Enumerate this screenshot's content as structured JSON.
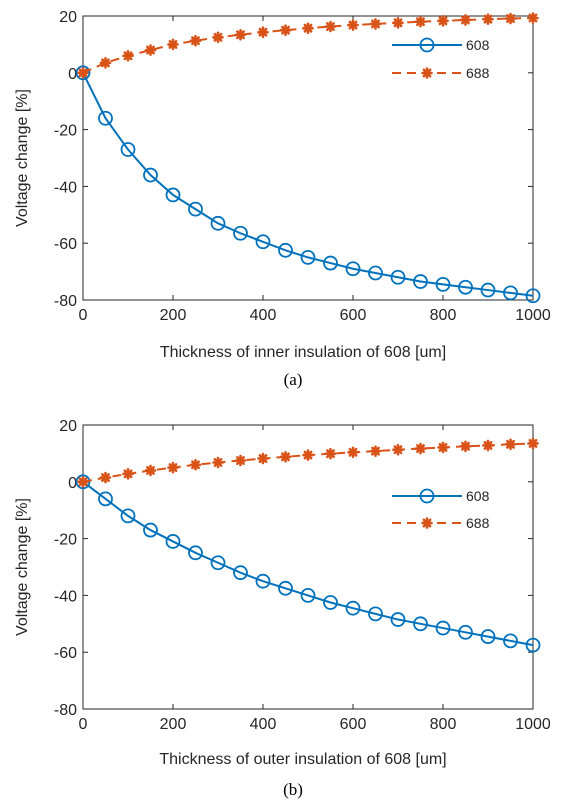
{
  "chart_data": [
    {
      "type": "line",
      "xlabel": "Thickness of inner insulation of 608 [um]",
      "ylabel": "Voltage change [%]",
      "caption": "(a)",
      "xlim": [
        0,
        1000
      ],
      "ylim": [
        -80,
        20
      ],
      "xticks": [
        "0",
        "200",
        "400",
        "600",
        "800",
        "1000"
      ],
      "yticks": [
        "20",
        "0",
        "-20",
        "-40",
        "-60",
        "-80"
      ],
      "legend_position": "top-right",
      "grid": false,
      "x": [
        0,
        50,
        100,
        150,
        200,
        250,
        300,
        350,
        400,
        450,
        500,
        550,
        600,
        650,
        700,
        750,
        800,
        850,
        900,
        950,
        1000
      ],
      "series": [
        {
          "name": "608",
          "marker": "circle",
          "line": "solid",
          "color": "#0072BD",
          "values": [
            0,
            -16,
            -27,
            -36,
            -43,
            -48,
            -53,
            -56.5,
            -59.5,
            -62.5,
            -65,
            -67,
            -69,
            -70.5,
            -72,
            -73.5,
            -74.5,
            -75.5,
            -76.5,
            -77.5,
            -78.5
          ]
        },
        {
          "name": "688",
          "marker": "asterisk",
          "line": "dashed",
          "color": "#D95319",
          "values": [
            0,
            3.5,
            6,
            8,
            10,
            11.3,
            12.5,
            13.4,
            14.3,
            15,
            15.7,
            16.3,
            16.8,
            17.2,
            17.6,
            18,
            18.3,
            18.6,
            18.9,
            19.1,
            19.3
          ]
        }
      ]
    },
    {
      "type": "line",
      "xlabel": "Thickness of outer insulation of 608 [um]",
      "ylabel": "Voltage change [%]",
      "caption": "(b)",
      "xlim": [
        0,
        1000
      ],
      "ylim": [
        -80,
        20
      ],
      "xticks": [
        "0",
        "200",
        "400",
        "600",
        "800",
        "1000"
      ],
      "yticks": [
        "20",
        "0",
        "-20",
        "-40",
        "-60",
        "-80"
      ],
      "legend_position": "top-right",
      "grid": false,
      "x": [
        0,
        50,
        100,
        150,
        200,
        250,
        300,
        350,
        400,
        450,
        500,
        550,
        600,
        650,
        700,
        750,
        800,
        850,
        900,
        950,
        1000
      ],
      "series": [
        {
          "name": "608",
          "marker": "circle",
          "line": "solid",
          "color": "#0072BD",
          "values": [
            0,
            -6,
            -12,
            -17,
            -21,
            -25,
            -28.5,
            -32,
            -35,
            -37.5,
            -40,
            -42.5,
            -44.5,
            -46.5,
            -48.5,
            -50,
            -51.5,
            -53,
            -54.5,
            -56,
            -57.5
          ]
        },
        {
          "name": "688",
          "marker": "asterisk",
          "line": "dashed",
          "color": "#D95319",
          "values": [
            0,
            1.5,
            2.8,
            4,
            5,
            6,
            6.8,
            7.5,
            8.2,
            8.8,
            9.4,
            9.9,
            10.4,
            10.8,
            11.3,
            11.7,
            12.1,
            12.5,
            12.8,
            13.2,
            13.5
          ]
        }
      ]
    }
  ]
}
